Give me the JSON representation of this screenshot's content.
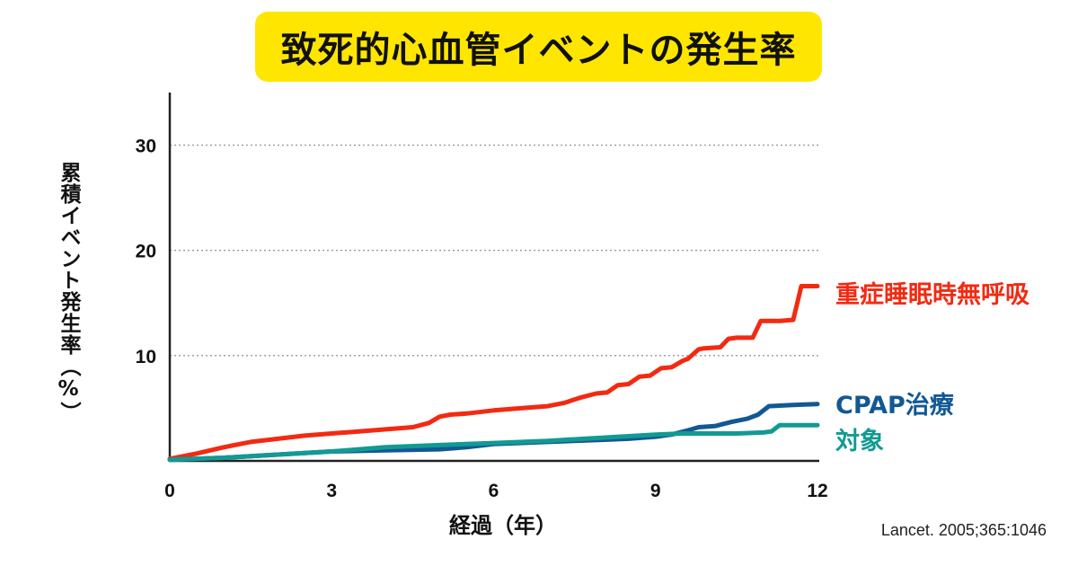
{
  "title": "致死的心血管イベントの発生率",
  "source": "Lancet. 2005;365:1046",
  "chart_data": {
    "type": "line",
    "xlabel": "経過（年）",
    "ylabel": "累積イベント発生率（%）",
    "xlim": [
      0,
      12
    ],
    "ylim": [
      0,
      35
    ],
    "xticks": [
      "0",
      "3",
      "6",
      "9",
      "12"
    ],
    "yticks": [
      "10",
      "20",
      "30"
    ],
    "grid": "horizontal dotted",
    "legend": "labels at right end of lines",
    "series": [
      {
        "name": "重症睡眠時無呼吸",
        "color": "#f22a12",
        "x": [
          0,
          0.5,
          1,
          1.5,
          2,
          2.5,
          3,
          3.5,
          4,
          4.5,
          4.8,
          5,
          5.2,
          5.5,
          6,
          6.5,
          7,
          7.3,
          7.6,
          7.9,
          8.1,
          8.3,
          8.5,
          8.7,
          8.9,
          9.1,
          9.3,
          9.5,
          9.6,
          9.8,
          9.9,
          10.2,
          10.35,
          10.5,
          10.8,
          10.95,
          11.3,
          11.55,
          11.7,
          12
        ],
        "y": [
          0.2,
          0.7,
          1.3,
          1.8,
          2.1,
          2.4,
          2.6,
          2.8,
          3.0,
          3.2,
          3.6,
          4.2,
          4.4,
          4.5,
          4.8,
          5.0,
          5.2,
          5.5,
          6.0,
          6.4,
          6.5,
          7.2,
          7.3,
          8.0,
          8.1,
          8.8,
          8.9,
          9.5,
          9.7,
          10.6,
          10.7,
          10.8,
          11.6,
          11.7,
          11.7,
          13.3,
          13.3,
          13.4,
          16.6,
          16.6
        ]
      },
      {
        "name": "CPAP治療",
        "color": "#125893",
        "x": [
          0,
          1,
          2,
          3,
          4,
          5,
          5.5,
          6,
          7,
          8,
          8.5,
          9,
          9.3,
          9.6,
          9.8,
          10.1,
          10.4,
          10.7,
          10.9,
          11.1,
          11.5,
          12
        ],
        "y": [
          0.1,
          0.3,
          0.6,
          0.9,
          1.0,
          1.1,
          1.3,
          1.6,
          1.8,
          2.0,
          2.1,
          2.3,
          2.5,
          2.9,
          3.2,
          3.3,
          3.7,
          4.0,
          4.4,
          5.2,
          5.3,
          5.4
        ]
      },
      {
        "name": "対象",
        "color": "#129a93",
        "x": [
          0,
          1,
          2,
          3,
          4,
          5,
          6,
          7,
          8,
          9,
          9.5,
          10,
          10.5,
          11,
          11.15,
          11.3,
          12
        ],
        "y": [
          0.1,
          0.3,
          0.6,
          0.9,
          1.3,
          1.5,
          1.7,
          1.9,
          2.2,
          2.5,
          2.6,
          2.6,
          2.6,
          2.7,
          2.8,
          3.4,
          3.4
        ]
      }
    ]
  }
}
